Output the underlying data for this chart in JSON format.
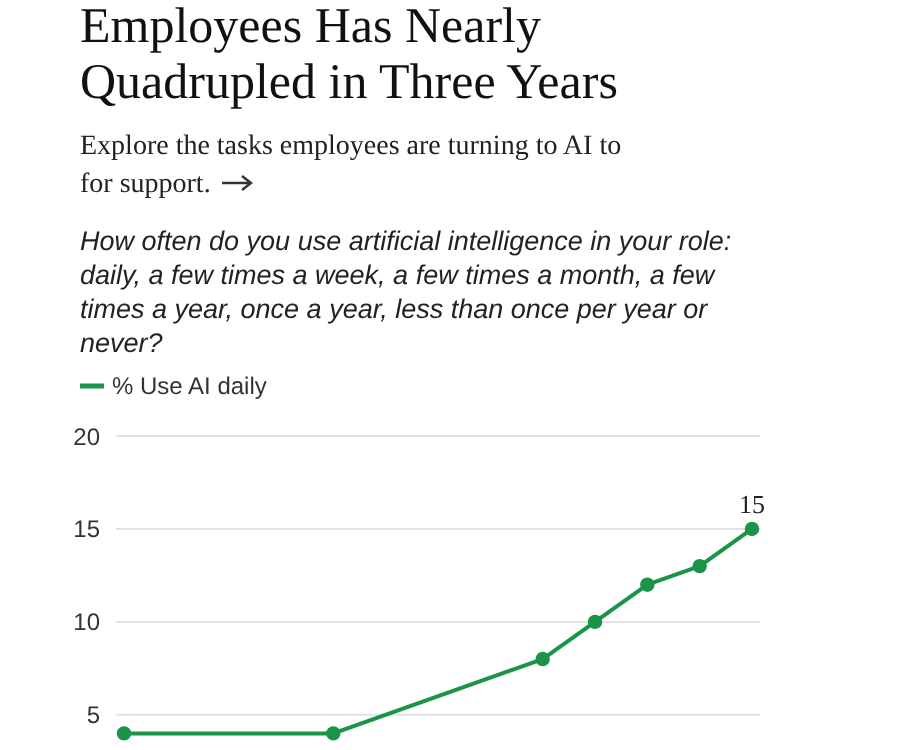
{
  "chart_data": {
    "type": "line",
    "title": "Employees Has Nearly Quadrupled in Three Years",
    "subtitle": "Explore the tasks employees are turning to AI to for support.",
    "annotations": [
      "How often do you use artificial intelligence in your role: daily, a few times a week, a few times a month, a few times a year, once a year, less than once per year or never?"
    ],
    "categories": [
      null,
      null,
      null,
      null,
      null,
      null,
      null,
      null,
      null,
      null,
      null,
      null,
      null
    ],
    "series": [
      {
        "name": "% Use AI daily",
        "color": "#1a9448",
        "values": [
          4,
          null,
          null,
          null,
          4,
          null,
          null,
          null,
          8,
          10,
          12,
          13,
          15
        ],
        "value_labels": [
          null,
          null,
          null,
          null,
          null,
          null,
          null,
          null,
          null,
          null,
          null,
          null,
          "15"
        ]
      }
    ],
    "ylim": [
      3,
      20
    ],
    "yticks": [
      5,
      10,
      15,
      20
    ],
    "tick_labels": "y",
    "grid": "y",
    "legend": "top left",
    "marker": "circle"
  }
}
